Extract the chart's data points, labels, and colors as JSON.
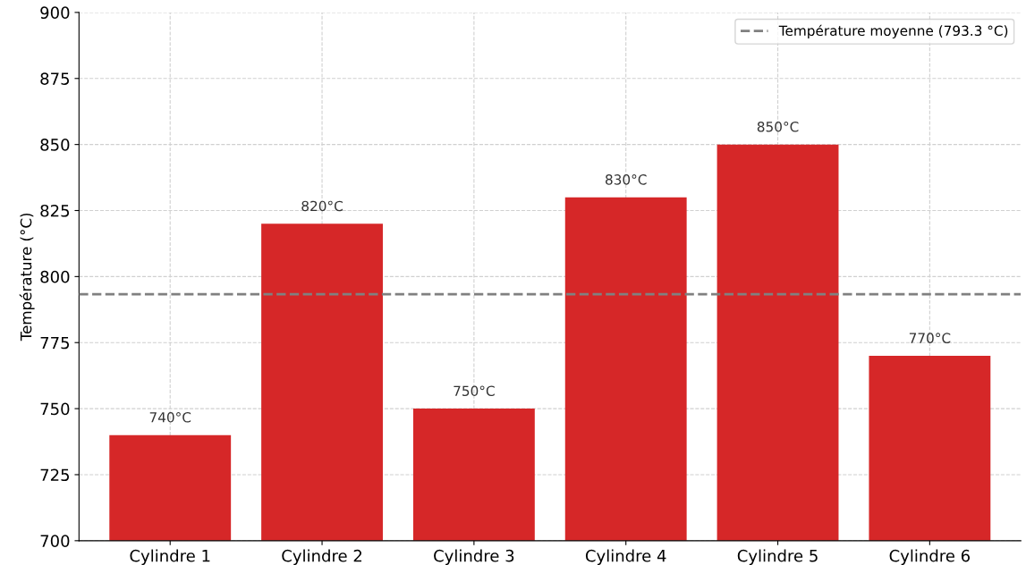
{
  "chart_data": {
    "type": "bar",
    "ylabel": "Température (°C)",
    "categories": [
      "Cylindre 1",
      "Cylindre 2",
      "Cylindre 3",
      "Cylindre 4",
      "Cylindre 5",
      "Cylindre 6"
    ],
    "values": [
      740,
      820,
      750,
      830,
      850,
      770
    ],
    "value_labels": [
      "740°C",
      "820°C",
      "750°C",
      "830°C",
      "850°C",
      "770°C"
    ],
    "color": "#d62728",
    "ylim": [
      700,
      900
    ],
    "yticks": [
      700,
      725,
      750,
      775,
      800,
      825,
      850,
      875,
      900
    ],
    "ref_lines": [
      {
        "axis": "y",
        "value": 793.3,
        "label": "Température moyenne (793.3 °C)",
        "color": "#808080",
        "line_style": "dashed"
      }
    ],
    "grid": true,
    "legend": "top right"
  }
}
